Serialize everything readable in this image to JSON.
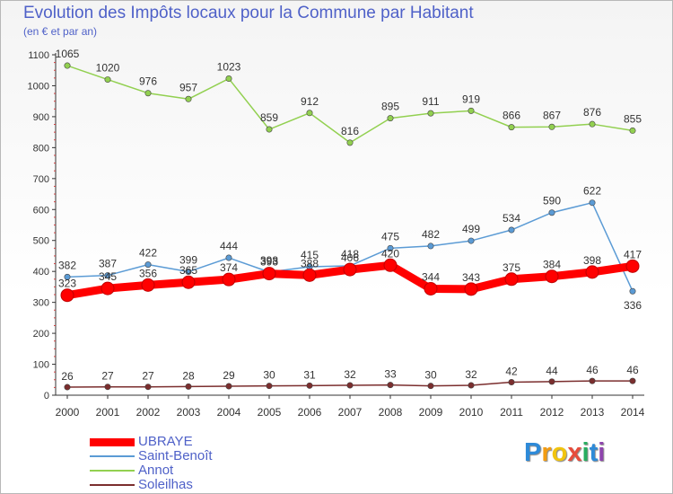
{
  "chart_data": {
    "type": "line",
    "title": "Evolution des Impôts locaux pour la Commune par Habitant",
    "subtitle": "(en € et par an)",
    "x": [
      "2000",
      "2001",
      "2002",
      "2003",
      "2004",
      "2005",
      "2006",
      "2007",
      "2008",
      "2009",
      "2010",
      "2011",
      "2012",
      "2013",
      "2014"
    ],
    "ylim": [
      0,
      1100
    ],
    "yticks": [
      0,
      100,
      200,
      300,
      400,
      500,
      600,
      700,
      800,
      900,
      1000,
      1100
    ],
    "grid": false,
    "legend_position": "bottom-left",
    "series": [
      {
        "name": "UBRAYE",
        "color": "#ff0000",
        "values": [
          323,
          345,
          356,
          365,
          374,
          393,
          388,
          406,
          420,
          344,
          343,
          375,
          384,
          398,
          417
        ]
      },
      {
        "name": "Saint-Benoît",
        "color": "#5b9bd5",
        "values": [
          382,
          387,
          422,
          399,
          444,
          398,
          415,
          418,
          475,
          482,
          499,
          534,
          590,
          622,
          336
        ]
      },
      {
        "name": "Annot",
        "color": "#92d050",
        "values": [
          1065,
          1020,
          976,
          957,
          1023,
          859,
          912,
          816,
          895,
          911,
          919,
          866,
          867,
          876,
          855
        ]
      },
      {
        "name": "Soleilhas",
        "color": "#7b2e2e",
        "values": [
          26,
          27,
          27,
          28,
          29,
          30,
          31,
          32,
          33,
          30,
          32,
          42,
          44,
          46,
          46
        ]
      }
    ]
  },
  "brand": {
    "letters": [
      "P",
      "r",
      "o",
      "x",
      "i",
      "t",
      "i"
    ],
    "colors": [
      "#2e8ad8",
      "#f39c12",
      "#f1c40f",
      "#e74c3c",
      "#27ae60",
      "#2e8ad8",
      "#8e44ad"
    ]
  }
}
